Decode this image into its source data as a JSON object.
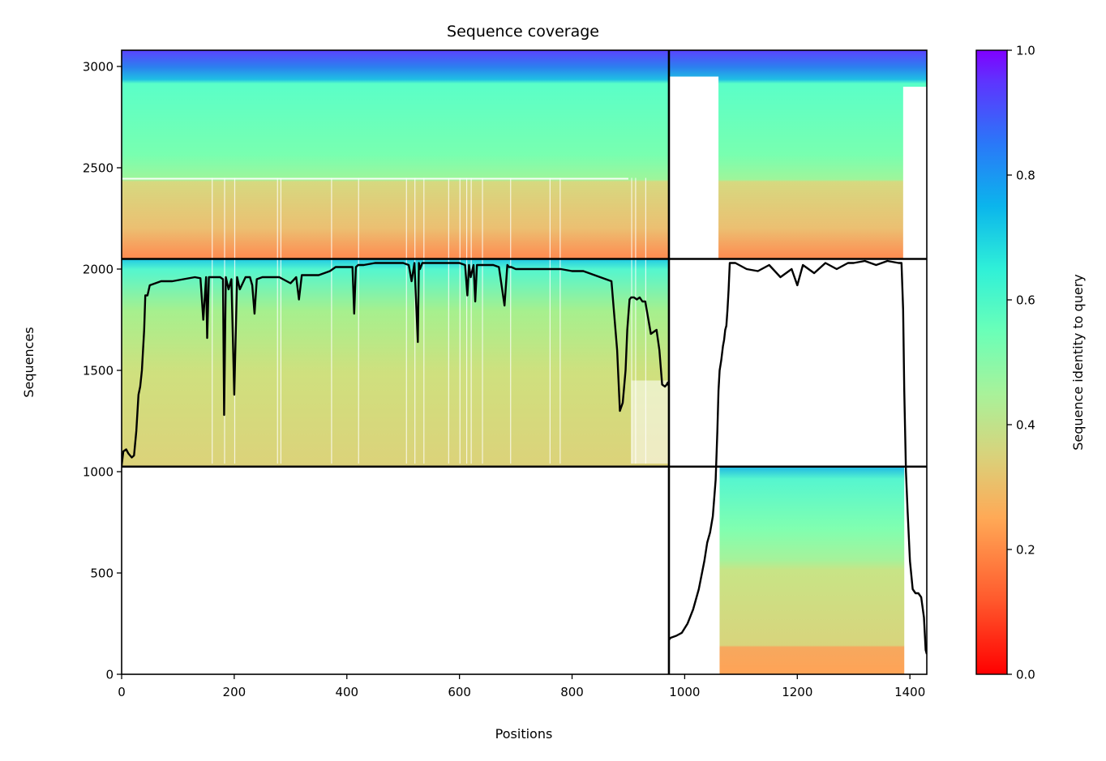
{
  "chart_data": {
    "type": "heatmap",
    "title": "Sequence coverage",
    "xlabel": "Positions",
    "ylabel": "Sequences",
    "xlim": [
      0,
      1430
    ],
    "ylim": [
      0,
      3080
    ],
    "xticks": [
      0,
      200,
      400,
      600,
      800,
      1000,
      1200,
      1400
    ],
    "yticks": [
      0,
      500,
      1000,
      1500,
      2000,
      2500,
      3000
    ],
    "grid": false,
    "colorbar": {
      "label": "Sequence identity to query",
      "range": [
        0.0,
        1.0
      ],
      "ticks": [
        0.0,
        0.2,
        0.4,
        0.6,
        0.8,
        1.0
      ],
      "colormap": "rainbow_r"
    },
    "chain_boundary_x": 972,
    "blocks": [
      {
        "name": "block-top-left",
        "x": [
          0,
          972
        ],
        "y": [
          2050,
          3080
        ]
      },
      {
        "name": "block-top-right",
        "x": [
          972,
          1430
        ],
        "y": [
          2050,
          3080
        ]
      },
      {
        "name": "block-mid-left",
        "x": [
          0,
          972
        ],
        "y": [
          1025,
          2050
        ]
      },
      {
        "name": "block-bottom-right",
        "x": [
          972,
          1430
        ],
        "y": [
          0,
          1025
        ]
      }
    ],
    "block_gridlines_y": [
      1025,
      2050
    ],
    "coverage_curve": {
      "x": [
        0,
        3,
        8,
        12,
        18,
        22,
        26,
        30,
        33,
        36,
        40,
        42,
        46,
        50,
        60,
        70,
        90,
        110,
        130,
        140,
        145,
        150,
        152,
        155,
        165,
        175,
        180,
        182,
        185,
        190,
        195,
        200,
        205,
        210,
        220,
        228,
        232,
        236,
        240,
        250,
        260,
        270,
        280,
        300,
        310,
        315,
        320,
        330,
        340,
        350,
        360,
        370,
        380,
        390,
        400,
        410,
        413,
        416,
        420,
        430,
        450,
        470,
        490,
        500,
        510,
        515,
        520,
        526,
        528,
        530,
        534,
        540,
        560,
        580,
        600,
        610,
        614,
        617,
        620,
        625,
        628,
        631,
        634,
        640,
        650,
        660,
        670,
        680,
        685,
        688,
        692,
        700,
        720,
        750,
        780,
        800,
        820,
        850,
        870,
        880,
        885,
        890,
        895,
        898,
        902,
        905,
        910,
        915,
        920,
        925,
        930,
        940,
        950,
        955,
        960,
        965,
        968,
        970,
        972
      ],
      "y": [
        1030,
        1100,
        1110,
        1090,
        1070,
        1080,
        1200,
        1380,
        1420,
        1500,
        1700,
        1870,
        1870,
        1920,
        1930,
        1940,
        1940,
        1950,
        1960,
        1955,
        1750,
        1960,
        1660,
        1960,
        1960,
        1960,
        1950,
        1280,
        1960,
        1900,
        1950,
        1380,
        1960,
        1900,
        1960,
        1960,
        1920,
        1780,
        1950,
        1960,
        1960,
        1960,
        1960,
        1930,
        1960,
        1850,
        1970,
        1970,
        1970,
        1970,
        1980,
        1990,
        2010,
        2010,
        2010,
        2010,
        1780,
        2010,
        2020,
        2020,
        2030,
        2030,
        2030,
        2030,
        2020,
        1940,
        2030,
        1640,
        2030,
        2000,
        2030,
        2030,
        2030,
        2030,
        2030,
        2020,
        1870,
        2020,
        1960,
        2020,
        1840,
        2020,
        2020,
        2020,
        2020,
        2020,
        2010,
        1820,
        2020,
        2010,
        2010,
        2000,
        2000,
        2000,
        2000,
        1990,
        1990,
        1960,
        1940,
        1600,
        1300,
        1340,
        1500,
        1700,
        1850,
        1860,
        1860,
        1850,
        1860,
        1840,
        1840,
        1680,
        1700,
        1600,
        1430,
        1420,
        1430,
        1440,
        1420
      ],
      "x2": [
        972,
        975,
        985,
        995,
        1005,
        1015,
        1025,
        1035,
        1040,
        1045,
        1050,
        1055,
        1058,
        1060,
        1062,
        1065,
        1068,
        1070,
        1072,
        1074,
        1076,
        1078,
        1080,
        1090,
        1110,
        1130,
        1150,
        1170,
        1190,
        1200,
        1210,
        1230,
        1250,
        1270,
        1290,
        1300,
        1320,
        1340,
        1360,
        1380,
        1385,
        1388,
        1390,
        1393,
        1396,
        1400,
        1405,
        1410,
        1415,
        1420,
        1425,
        1428,
        1430
      ],
      "y2": [
        170,
        180,
        190,
        205,
        250,
        320,
        420,
        560,
        650,
        700,
        780,
        960,
        1200,
        1400,
        1500,
        1550,
        1620,
        1650,
        1700,
        1720,
        1800,
        1900,
        2030,
        2030,
        2000,
        1990,
        2020,
        1960,
        2000,
        1920,
        2020,
        1980,
        2030,
        2000,
        2030,
        2030,
        2040,
        2020,
        2040,
        2030,
        2030,
        1800,
        1400,
        1000,
        800,
        560,
        420,
        400,
        400,
        380,
        280,
        120,
        100
      ]
    },
    "top_band_fill_start_right": [
      1060,
      1075
    ]
  }
}
